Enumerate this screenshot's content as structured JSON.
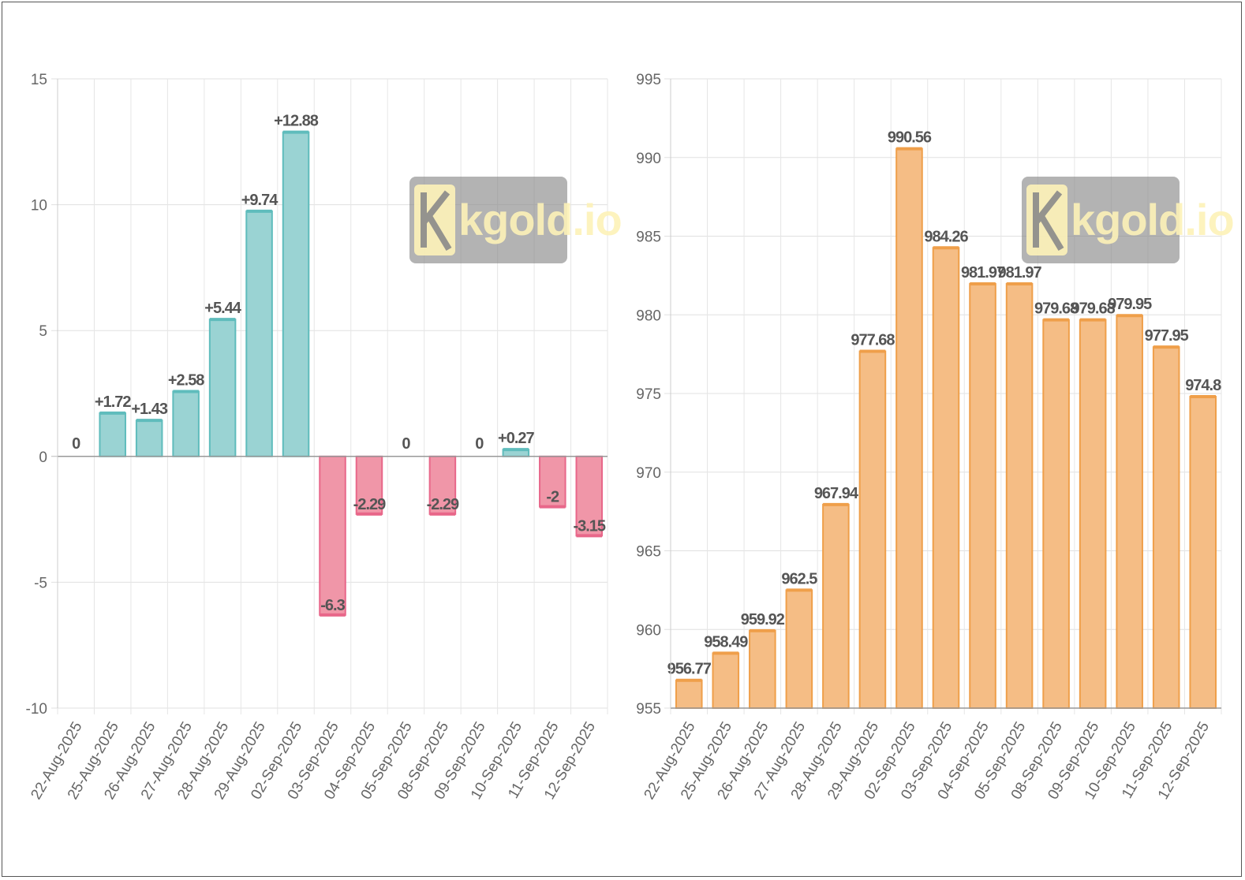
{
  "chart_data": [
    {
      "type": "bar",
      "categories": [
        "22-Aug-2025",
        "25-Aug-2025",
        "26-Aug-2025",
        "27-Aug-2025",
        "28-Aug-2025",
        "29-Aug-2025",
        "02-Sep-2025",
        "03-Sep-2025",
        "04-Sep-2025",
        "05-Sep-2025",
        "08-Sep-2025",
        "09-Sep-2025",
        "10-Sep-2025",
        "11-Sep-2025",
        "12-Sep-2025"
      ],
      "values": [
        0,
        1.72,
        1.43,
        2.58,
        5.44,
        9.74,
        12.88,
        -6.3,
        -2.29,
        0,
        -2.29,
        0,
        0.27,
        -2,
        -3.15
      ],
      "labels": [
        "0",
        "+1.72",
        "+1.43",
        "+2.58",
        "+5.44",
        "+9.74",
        "+12.88",
        "-6.3",
        "-2.29",
        "0",
        "-2.29",
        "0",
        "+0.27",
        "-2",
        "-3.15"
      ],
      "ylim": [
        -10,
        15
      ],
      "yticks": [
        15,
        10,
        5,
        0,
        -5,
        -10
      ],
      "ytick_labels": [
        "15",
        "10",
        "5",
        "0",
        "-5",
        "-10"
      ],
      "positive_color": "#9ad3d3",
      "positive_border": "#5fbcbc",
      "negative_color": "#f096a8",
      "negative_border": "#e8678a",
      "grid": true,
      "watermark": "kgold.io"
    },
    {
      "type": "bar",
      "categories": [
        "22-Aug-2025",
        "25-Aug-2025",
        "26-Aug-2025",
        "27-Aug-2025",
        "28-Aug-2025",
        "29-Aug-2025",
        "02-Sep-2025",
        "03-Sep-2025",
        "04-Sep-2025",
        "05-Sep-2025",
        "08-Sep-2025",
        "09-Sep-2025",
        "10-Sep-2025",
        "11-Sep-2025",
        "12-Sep-2025"
      ],
      "values": [
        956.77,
        958.49,
        959.92,
        962.5,
        967.94,
        977.68,
        990.56,
        984.26,
        981.97,
        981.97,
        979.68,
        979.68,
        979.95,
        977.95,
        974.8
      ],
      "labels": [
        "956.77",
        "958.49",
        "959.92",
        "962.5",
        "967.94",
        "977.68",
        "990.56",
        "984.26",
        "981.97",
        "981.97",
        "979.68",
        "979.68",
        "979.95",
        "977.95",
        "974.8"
      ],
      "ylim": [
        955,
        995
      ],
      "yticks": [
        995,
        990,
        985,
        980,
        975,
        970,
        965,
        960,
        955
      ],
      "ytick_labels": [
        "995",
        "990",
        "985",
        "980",
        "975",
        "970",
        "965",
        "960",
        "955"
      ],
      "bar_color": "#f5bd85",
      "bar_border": "#ef9f4a",
      "grid": true,
      "watermark": "kgold.io"
    }
  ]
}
